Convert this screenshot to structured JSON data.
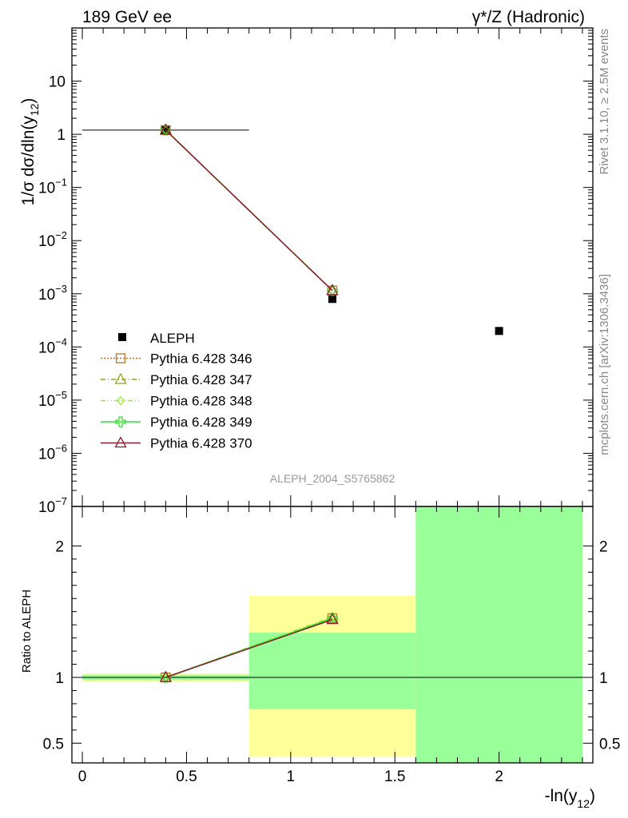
{
  "header": {
    "left": "189 GeV ee",
    "right": "γ*/Z (Hadronic)"
  },
  "side_labels": {
    "rivet": "Rivet 3.1.10, ≥ 2.5M events",
    "mcplots": "mcplots.cern.ch [arXiv:1306.3436]"
  },
  "watermark": "ALEPH_2004_S5765862",
  "chart_data": [
    {
      "type": "scatter",
      "title": "",
      "ylabel": "1/σ dσ/dln(y12)",
      "yscale": "log",
      "ylim": [
        1e-07,
        100
      ],
      "xlim": [
        -0.05,
        2.45
      ],
      "yticks": [
        {
          "v": 10,
          "label": "10"
        },
        {
          "v": 1,
          "label": "1"
        },
        {
          "v": 0.1,
          "base": "10",
          "exp": "−1"
        },
        {
          "v": 0.01,
          "base": "10",
          "exp": "−2"
        },
        {
          "v": 0.001,
          "base": "10",
          "exp": "−3"
        },
        {
          "v": 0.0001,
          "base": "10",
          "exp": "−4"
        },
        {
          "v": 1e-05,
          "base": "10",
          "exp": "−5"
        },
        {
          "v": 1e-06,
          "base": "10",
          "exp": "−6"
        },
        {
          "v": 1e-07,
          "base": "10",
          "exp": "−7"
        }
      ],
      "legend_position": "lower-left",
      "data": {
        "name": "ALEPH",
        "color": "#000000",
        "points": [
          {
            "x": 0.4,
            "y": 1.2,
            "xlo": 0.0,
            "xhi": 0.8
          },
          {
            "x": 1.2,
            "y": 0.0008,
            "xlo": 0.8,
            "xhi": 1.6
          },
          {
            "x": 2.0,
            "y": 0.0002,
            "xlo": 1.6,
            "xhi": 2.4
          }
        ]
      },
      "series": [
        {
          "name": "Pythia 6.428 346",
          "color": "#b87333",
          "marker": "square",
          "dash": "2,2",
          "x": [
            0.4,
            1.2
          ],
          "y": [
            1.2,
            0.00115
          ]
        },
        {
          "name": "Pythia 6.428 347",
          "color": "#8fa81c",
          "marker": "triangle",
          "dash": "6,3,1,3",
          "x": [
            0.4,
            1.2
          ],
          "y": [
            1.2,
            0.00115
          ]
        },
        {
          "name": "Pythia 6.428 348",
          "color": "#99ee33",
          "marker": "diamond",
          "dash": "6,3,1,3,1,3",
          "x": [
            0.4,
            1.2
          ],
          "y": [
            1.2,
            0.00115
          ]
        },
        {
          "name": "Pythia 6.428 349",
          "color": "#33dd33",
          "marker": "cross",
          "dash": "",
          "x": [
            0.4,
            1.2
          ],
          "y": [
            1.2,
            0.00115
          ]
        },
        {
          "name": "Pythia 6.428 370",
          "color": "#8b1a2a",
          "marker": "triangle",
          "dash": "",
          "x": [
            0.4,
            1.2
          ],
          "y": [
            1.2,
            0.00115
          ]
        }
      ]
    },
    {
      "type": "line",
      "ylabel": "Ratio to ALEPH",
      "xlabel": "-ln(y12)",
      "ylim": [
        0.35,
        2.3
      ],
      "xlim": [
        -0.05,
        2.45
      ],
      "yticks": [
        {
          "v": 0.5,
          "label": "0.5"
        },
        {
          "v": 1,
          "label": "1"
        },
        {
          "v": 2,
          "label": "2"
        }
      ],
      "xticks": [
        {
          "v": 0,
          "label": "0"
        },
        {
          "v": 0.5,
          "label": "0.5"
        },
        {
          "v": 1,
          "label": "1"
        },
        {
          "v": 1.5,
          "label": "1.5"
        },
        {
          "v": 2,
          "label": "2"
        }
      ],
      "bands": [
        {
          "xlo": 0.0,
          "xhi": 0.8,
          "yellow": [
            0.97,
            1.03
          ],
          "green": [
            0.98,
            1.02
          ]
        },
        {
          "xlo": 0.8,
          "xhi": 1.6,
          "yellow": [
            0.4,
            1.62
          ],
          "green": [
            0.76,
            1.34
          ]
        },
        {
          "xlo": 1.6,
          "xhi": 2.4,
          "yellow": [
            0.35,
            2.3
          ],
          "green": [
            0.35,
            2.3
          ]
        }
      ],
      "series": [
        {
          "name": "Pythia 6.428 346",
          "color": "#b87333",
          "marker": "square",
          "dash": "2,2",
          "x": [
            0.4,
            1.2
          ],
          "y": [
            1.0,
            1.45
          ]
        },
        {
          "name": "Pythia 6.428 347",
          "color": "#8fa81c",
          "marker": "triangle",
          "dash": "6,3,1,3",
          "x": [
            0.4,
            1.2
          ],
          "y": [
            1.0,
            1.45
          ]
        },
        {
          "name": "Pythia 6.428 348",
          "color": "#99ee33",
          "marker": "diamond",
          "dash": "6,3,1,3,1,3",
          "x": [
            0.4,
            1.2
          ],
          "y": [
            1.0,
            1.46
          ]
        },
        {
          "name": "Pythia 6.428 349",
          "color": "#33dd33",
          "marker": "cross",
          "dash": "",
          "x": [
            0.4,
            1.2
          ],
          "y": [
            1.0,
            1.45
          ]
        },
        {
          "name": "Pythia 6.428 370",
          "color": "#8b1a2a",
          "marker": "triangle",
          "dash": "",
          "x": [
            0.4,
            1.2
          ],
          "y": [
            1.0,
            1.44
          ]
        }
      ]
    }
  ]
}
